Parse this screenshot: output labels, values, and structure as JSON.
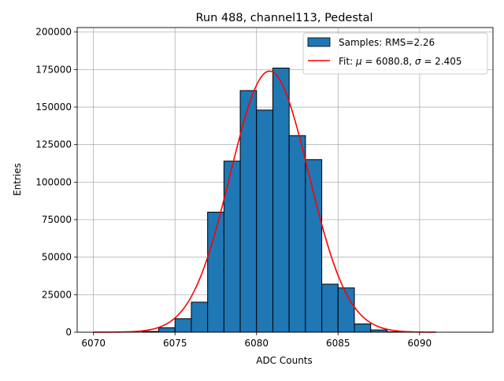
{
  "chart_data": {
    "type": "bar",
    "title": "Run 488, channel113, Pedestal",
    "xlabel": "ADC Counts",
    "ylabel": "Entries",
    "xlim": [
      6069,
      6094.5
    ],
    "ylim": [
      0,
      203000
    ],
    "xticks": [
      6070,
      6075,
      6080,
      6085,
      6090
    ],
    "yticks": [
      0,
      25000,
      50000,
      75000,
      100000,
      125000,
      150000,
      175000,
      200000
    ],
    "grid": true,
    "legend_position": "top-right",
    "bin_width": 1,
    "bar_color": "#1f77b4",
    "fit_color": "#ff0000",
    "histogram": {
      "name": "Samples: RMS=2.26",
      "bin_starts": [
        6073,
        6074,
        6075,
        6076,
        6077,
        6078,
        6079,
        6080,
        6081,
        6082,
        6083,
        6084,
        6085,
        6086,
        6087,
        6088
      ],
      "values": [
        500,
        3000,
        9000,
        20000,
        80000,
        114000,
        161000,
        148000,
        176000,
        131000,
        115000,
        32000,
        29500,
        5500,
        1500,
        300
      ]
    },
    "fit": {
      "name_prefix": "Fit: ",
      "mu_symbol": "μ",
      "mu_text": " = 6080.8, ",
      "sigma_symbol": "σ",
      "sigma_text": " = 2.405",
      "mu": 6080.8,
      "sigma": 2.405,
      "amplitude": 174000,
      "x_range": [
        6070,
        6091
      ]
    }
  }
}
